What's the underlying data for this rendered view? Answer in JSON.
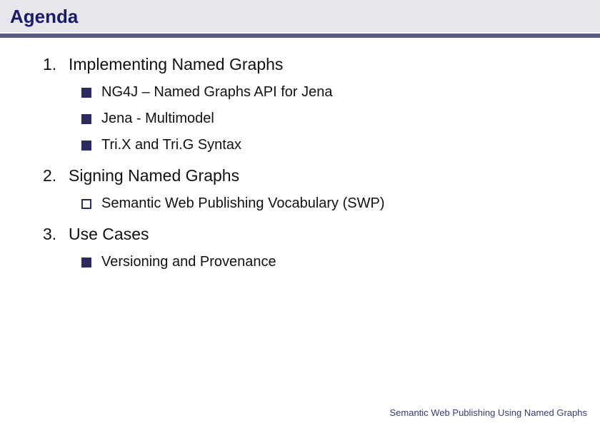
{
  "colors": {
    "title_band_bg": "#e6e6ec",
    "title_text": "#1a1a6a",
    "rule": "#5a5a8a",
    "bullet_square": "#2b2b60",
    "body_text": "#111111",
    "footer_text": "#3a3a7a",
    "background": "#ffffff"
  },
  "typography": {
    "title_fontsize": 26,
    "section_fontsize": 23,
    "bullet_fontsize": 20,
    "footer_fontsize": 13,
    "font_family": "Arial"
  },
  "slide": {
    "title": "Agenda",
    "sections": [
      {
        "number": "1.",
        "title": "Implementing Named Graphs",
        "bullets": [
          {
            "text": "NG4J – Named Graphs API for Jena",
            "marker": "filled"
          },
          {
            "text": "Jena - Multimodel",
            "marker": "filled"
          },
          {
            "text": "Tri.X and Tri.G Syntax",
            "marker": "filled"
          }
        ]
      },
      {
        "number": "2.",
        "title": "Signing Named Graphs",
        "bullets": [
          {
            "text": "Semantic Web Publishing Vocabulary (SWP)",
            "marker": "hollow"
          }
        ]
      },
      {
        "number": "3.",
        "title": "Use Cases",
        "bullets": [
          {
            "text": "Versioning and Provenance",
            "marker": "filled"
          }
        ]
      }
    ],
    "footer": "Semantic Web Publishing Using Named Graphs"
  }
}
